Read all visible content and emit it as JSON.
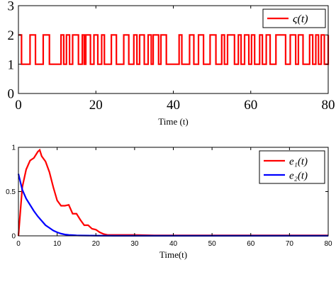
{
  "chart_data": [
    {
      "type": "line",
      "step": true,
      "xlabel": "Time (t)",
      "ylabel": "",
      "xlim": [
        0,
        80
      ],
      "ylim": [
        0,
        3
      ],
      "xticks": [
        "0",
        "20",
        "40",
        "60",
        "80"
      ],
      "yticks": [
        "0",
        "1",
        "2",
        "3"
      ],
      "grid": false,
      "legend_position": "top-right",
      "series": [
        {
          "name": "ς(t)",
          "color": "#ff0000",
          "x": [
            0,
            0.8,
            3,
            4.4,
            6.4,
            8,
            11,
            11.7,
            12.4,
            13.2,
            14,
            15.5,
            16.5,
            17,
            17.4,
            18.6,
            19.5,
            20.5,
            21.5,
            22.2,
            24,
            25.3,
            27.2,
            28.5,
            29.8,
            30.6,
            31.3,
            32.5,
            33.5,
            34.3,
            34.8,
            36.2,
            36.8,
            38.2,
            41.5,
            42.2,
            44.2,
            45.3,
            46.5,
            47.8,
            49.5,
            51,
            52.5,
            53.2,
            54,
            55.8,
            56.8,
            57.5,
            58.4,
            59.5,
            60.2,
            61,
            62.3,
            63,
            64,
            65,
            66.5,
            69,
            70.2,
            71.6,
            72.3,
            73.5,
            75.2,
            76,
            76.8,
            77.5,
            78.2,
            79,
            80
          ],
          "y": [
            2,
            1,
            2,
            1,
            2,
            1,
            2,
            1,
            2,
            1,
            2,
            1,
            2,
            1,
            2,
            1,
            2,
            1,
            2,
            1,
            2,
            1,
            2,
            1,
            2,
            1,
            2,
            1,
            2,
            1,
            2,
            1,
            2,
            1,
            2,
            1,
            2,
            1,
            2,
            1,
            2,
            1,
            2,
            1,
            2,
            1,
            2,
            1,
            2,
            1,
            2,
            1,
            2,
            1,
            2,
            1,
            2,
            1,
            2,
            1,
            2,
            1,
            2,
            1,
            2,
            1,
            2,
            1,
            2
          ]
        }
      ]
    },
    {
      "type": "line",
      "xlabel": "Time(t)",
      "ylabel": "",
      "xlim": [
        0,
        80
      ],
      "ylim": [
        0,
        1
      ],
      "xticks": [
        "0",
        "10",
        "20",
        "30",
        "40",
        "50",
        "60",
        "70",
        "80"
      ],
      "yticks": [
        "0",
        "0.5",
        "1"
      ],
      "grid": false,
      "legend_position": "top-right",
      "series": [
        {
          "name": "e₁(t)",
          "color": "#ff0000",
          "x": [
            0,
            1,
            2,
            3,
            4,
            5,
            5.5,
            6,
            7,
            8,
            9,
            10,
            11,
            12,
            13,
            14,
            15,
            16,
            17,
            18,
            19,
            20,
            21,
            22,
            23,
            25,
            28,
            30,
            35,
            40,
            50,
            60,
            70,
            80
          ],
          "y": [
            0,
            0.55,
            0.75,
            0.85,
            0.88,
            0.95,
            0.97,
            0.9,
            0.84,
            0.72,
            0.55,
            0.4,
            0.34,
            0.34,
            0.35,
            0.25,
            0.25,
            0.18,
            0.12,
            0.12,
            0.08,
            0.07,
            0.04,
            0.02,
            0.01,
            0.01,
            0.01,
            0.01,
            0.005,
            0.005,
            0.005,
            0.005,
            0.005,
            0.005
          ]
        },
        {
          "name": "e₂(t)",
          "color": "#0000ff",
          "x": [
            0,
            1,
            2,
            3,
            4,
            5,
            6,
            7,
            8,
            9,
            10,
            11,
            12,
            13,
            14,
            15,
            16,
            18,
            20,
            25,
            30,
            40,
            50,
            60,
            70,
            80
          ],
          "y": [
            0.7,
            0.52,
            0.42,
            0.35,
            0.28,
            0.22,
            0.17,
            0.12,
            0.09,
            0.06,
            0.04,
            0.025,
            0.015,
            0.01,
            0.008,
            0.005,
            0.004,
            0.003,
            0.002,
            0.001,
            0.001,
            0.001,
            0.001,
            0.001,
            0.001,
            0.001
          ]
        }
      ]
    }
  ]
}
